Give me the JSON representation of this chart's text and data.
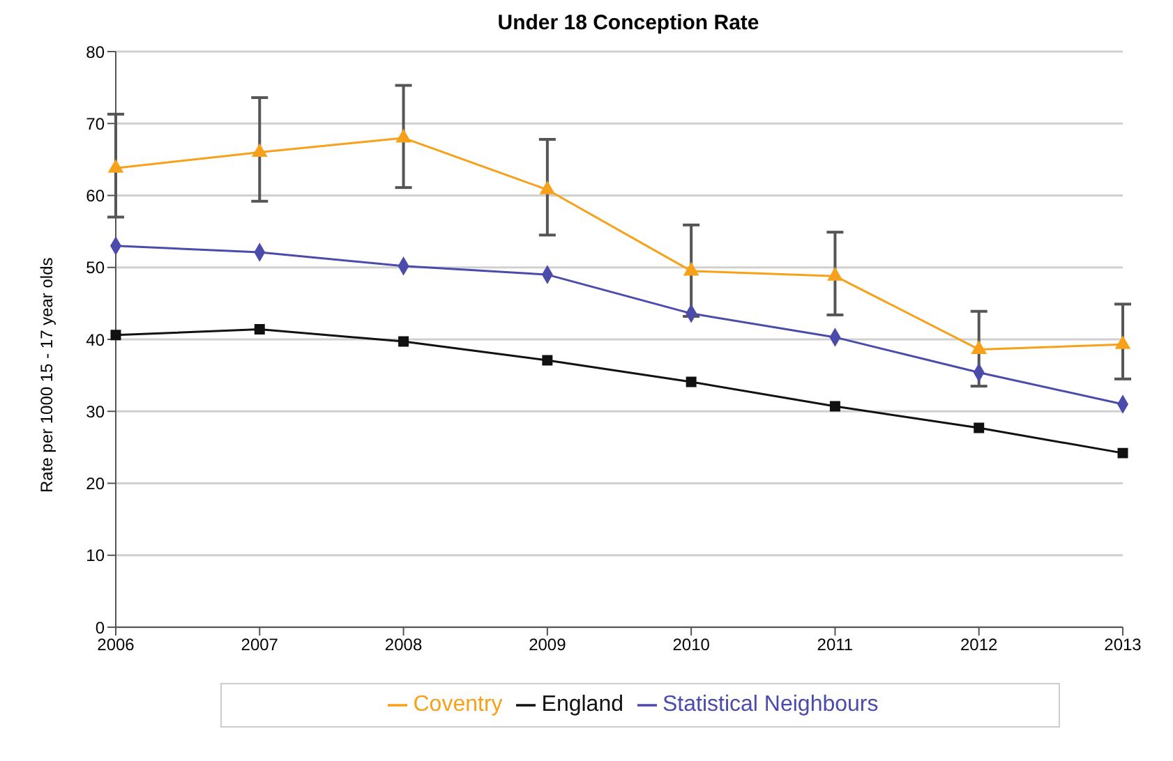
{
  "chart_data": {
    "type": "line",
    "title": "Under 18 Conception Rate",
    "ylabel": "Rate per 1000 15 - 17 year olds",
    "categories": [
      "2006",
      "2007",
      "2008",
      "2009",
      "2010",
      "2011",
      "2012",
      "2013"
    ],
    "series": [
      {
        "name": "Coventry",
        "color": "#f7a11a",
        "marker": "triangle",
        "values": [
          63.8,
          66,
          68,
          60.8,
          49.5,
          48.8,
          38.6,
          39.3
        ],
        "errors": [
          [
            57,
            71.3
          ],
          [
            59.2,
            73.6
          ],
          [
            61.1,
            75.3
          ],
          [
            54.5,
            67.8
          ],
          [
            43.2,
            55.9
          ],
          [
            43.4,
            54.9
          ],
          [
            33.5,
            43.9
          ],
          [
            34.5,
            44.9
          ]
        ]
      },
      {
        "name": "Statistical Neighbours",
        "color": "#4b4bab",
        "marker": "diamond",
        "values": [
          53,
          52.1,
          50.2,
          49,
          43.6,
          40.3,
          35.4,
          31
        ]
      },
      {
        "name": "England",
        "color": "#111111",
        "marker": "square",
        "values": [
          40.6,
          41.4,
          39.7,
          37.1,
          34.1,
          30.7,
          27.7,
          24.2
        ]
      }
    ],
    "ylim": [
      0,
      80
    ],
    "yticks": [
      0,
      10,
      20,
      30,
      40,
      50,
      60,
      70,
      80
    ],
    "grid": "y",
    "legend": "bottom"
  }
}
